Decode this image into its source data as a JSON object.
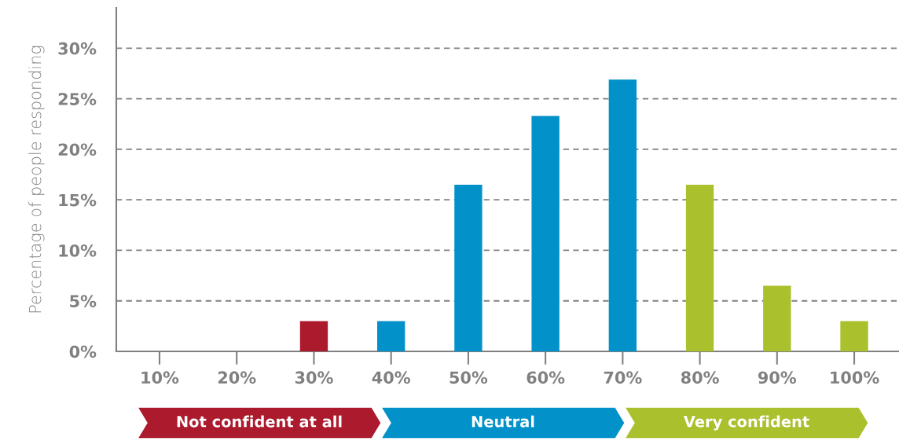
{
  "chart_data": {
    "type": "bar",
    "ylabel": "Percentage of people responding",
    "categories": [
      "10%",
      "20%",
      "30%",
      "40%",
      "50%",
      "60%",
      "70%",
      "80%",
      "90%",
      "100%"
    ],
    "values": [
      0,
      0,
      3,
      3,
      16.5,
      23.3,
      26.9,
      16.5,
      6.5,
      3
    ],
    "colors": [
      "#ab1a2d",
      "#ab1a2d",
      "#ab1a2d",
      "#0291c9",
      "#0291c9",
      "#0291c9",
      "#0291c9",
      "#abc02d",
      "#abc02d",
      "#abc02d"
    ],
    "ylim": [
      0,
      34
    ],
    "yticks": [
      {
        "value": 0,
        "label": "0%"
      },
      {
        "value": 5,
        "label": "5%"
      },
      {
        "value": 10,
        "label": "10%"
      },
      {
        "value": 15,
        "label": "15%"
      },
      {
        "value": 20,
        "label": "20%"
      },
      {
        "value": 25,
        "label": "25%"
      },
      {
        "value": 30,
        "label": "30%"
      }
    ],
    "grid": "y",
    "annotations": [
      "Not confident at all",
      "Neutral",
      "Very confident"
    ]
  }
}
